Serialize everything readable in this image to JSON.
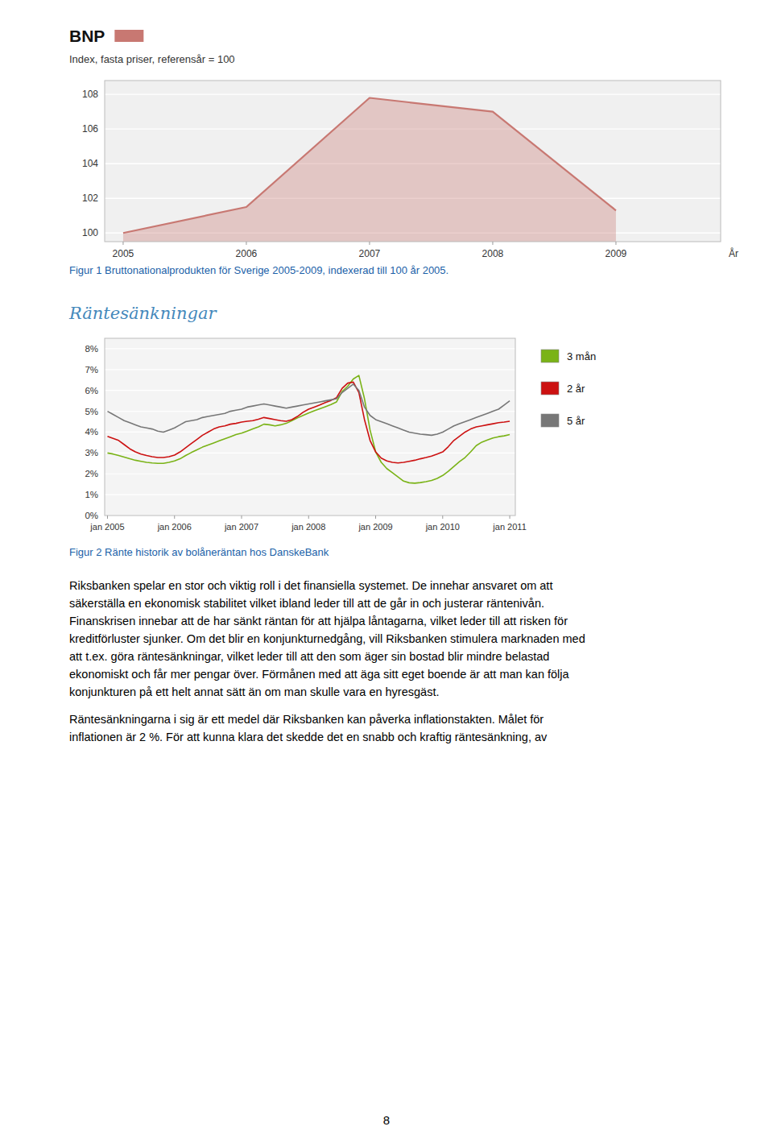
{
  "chart_data": [
    {
      "type": "area",
      "title": "BNP",
      "subtitle": "Index, fasta priser, referensår = 100",
      "xlabel": "År",
      "caption": "Figur 1 Bruttonationalprodukten för Sverige 2005-2009, indexerad till 100 år 2005.",
      "x": [
        2005,
        2006,
        2007,
        2008,
        2009
      ],
      "series": [
        {
          "color": "#c87872",
          "values": [
            100.0,
            101.5,
            107.8,
            107.0,
            101.3
          ]
        }
      ],
      "xlim": [
        2004.85,
        2009.85
      ],
      "xticks": [
        2005,
        2006,
        2007,
        2008,
        2009
      ],
      "ylim": [
        99.5,
        108.8
      ],
      "yticks": [
        100,
        102,
        104,
        106,
        108
      ],
      "grid": true
    },
    {
      "type": "line",
      "title": "Räntesänkningar",
      "caption": "Figur 2 Ränte historik av bolåneräntan hos DanskeBank",
      "categories": [
        "jan 2005",
        null,
        null,
        null,
        null,
        null,
        null,
        null,
        null,
        null,
        null,
        null,
        "jan 2006",
        null,
        null,
        null,
        null,
        null,
        null,
        null,
        null,
        null,
        null,
        null,
        "jan 2007",
        null,
        null,
        null,
        null,
        null,
        null,
        null,
        null,
        null,
        null,
        null,
        "jan 2008",
        null,
        null,
        null,
        null,
        null,
        null,
        null,
        null,
        null,
        null,
        null,
        "jan 2009",
        null,
        null,
        null,
        null,
        null,
        null,
        null,
        null,
        null,
        null,
        null,
        "jan 2010",
        null,
        null,
        null,
        null,
        null,
        null,
        null,
        null,
        null,
        null,
        null,
        "jan 2011"
      ],
      "series": [
        {
          "name": "3 mån",
          "color": "#7ab317",
          "values": [
            3.0,
            2.95,
            2.88,
            2.8,
            2.72,
            2.65,
            2.6,
            2.55,
            2.52,
            2.5,
            2.5,
            2.55,
            2.62,
            2.72,
            2.88,
            3.02,
            3.15,
            3.28,
            3.38,
            3.48,
            3.58,
            3.68,
            3.78,
            3.88,
            3.95,
            4.05,
            4.15,
            4.25,
            4.38,
            4.35,
            4.3,
            4.35,
            4.42,
            4.55,
            4.68,
            4.8,
            4.92,
            5.02,
            5.12,
            5.22,
            5.32,
            5.45,
            5.95,
            6.2,
            6.55,
            6.72,
            5.6,
            4.1,
            3.05,
            2.55,
            2.25,
            2.05,
            1.85,
            1.65,
            1.57,
            1.55,
            1.58,
            1.62,
            1.68,
            1.78,
            1.92,
            2.12,
            2.35,
            2.58,
            2.78,
            3.05,
            3.35,
            3.52,
            3.62,
            3.72,
            3.78,
            3.82,
            3.88
          ]
        },
        {
          "name": "2 år",
          "color": "#cc1111",
          "values": [
            3.8,
            3.7,
            3.6,
            3.4,
            3.2,
            3.05,
            2.95,
            2.88,
            2.82,
            2.78,
            2.78,
            2.82,
            2.9,
            3.05,
            3.25,
            3.45,
            3.65,
            3.85,
            4.0,
            4.15,
            4.25,
            4.3,
            4.38,
            4.42,
            4.48,
            4.52,
            4.55,
            4.62,
            4.7,
            4.65,
            4.6,
            4.55,
            4.52,
            4.6,
            4.75,
            4.95,
            5.1,
            5.2,
            5.3,
            5.42,
            5.52,
            5.65,
            6.1,
            6.35,
            6.4,
            5.9,
            4.6,
            3.6,
            3.05,
            2.75,
            2.62,
            2.55,
            2.52,
            2.55,
            2.6,
            2.65,
            2.72,
            2.78,
            2.85,
            2.95,
            3.05,
            3.3,
            3.6,
            3.8,
            4.0,
            4.15,
            4.25,
            4.3,
            4.35,
            4.4,
            4.45,
            4.48,
            4.52
          ]
        },
        {
          "name": "5 år",
          "color": "#777777",
          "values": [
            5.0,
            4.85,
            4.7,
            4.55,
            4.45,
            4.35,
            4.25,
            4.2,
            4.15,
            4.05,
            4.0,
            4.1,
            4.2,
            4.35,
            4.5,
            4.55,
            4.6,
            4.7,
            4.75,
            4.8,
            4.85,
            4.9,
            5.0,
            5.05,
            5.1,
            5.2,
            5.25,
            5.3,
            5.35,
            5.3,
            5.25,
            5.2,
            5.15,
            5.2,
            5.25,
            5.3,
            5.35,
            5.4,
            5.45,
            5.5,
            5.55,
            5.6,
            5.9,
            6.1,
            6.3,
            6.0,
            5.2,
            4.8,
            4.6,
            4.5,
            4.4,
            4.3,
            4.2,
            4.1,
            4.0,
            3.95,
            3.9,
            3.88,
            3.85,
            3.9,
            4.0,
            4.15,
            4.3,
            4.4,
            4.5,
            4.6,
            4.7,
            4.8,
            4.9,
            5.0,
            5.1,
            5.3,
            5.5
          ]
        }
      ],
      "ylim": [
        0,
        8.5
      ],
      "yticks": [
        {
          "value": 0,
          "label": "0%"
        },
        {
          "value": 1,
          "label": "1%"
        },
        {
          "value": 2,
          "label": "2%"
        },
        {
          "value": 3,
          "label": "3%"
        },
        {
          "value": 4,
          "label": "4%"
        },
        {
          "value": 5,
          "label": "5%"
        },
        {
          "value": 6,
          "label": "6%"
        },
        {
          "value": 7,
          "label": "7%"
        },
        {
          "value": 8,
          "label": "8%"
        }
      ],
      "grid": true,
      "legend": "right"
    }
  ],
  "body_text": [
    [
      "Riksbanken spelar en stor och viktig roll i det finansiella systemet. De innehar ansvaret om att",
      "säkerställa en ekonomisk stabilitet vilket ibland leder till att de går in och justerar räntenivån.",
      "Finanskrisen innebar att de har sänkt räntan för att hjälpa låntagarna, vilket leder till att risken för",
      "kreditförluster sjunker. Om det blir en konjunkturnedgång, vill Riksbanken stimulera marknaden med",
      "att t.ex. göra räntesänkningar, vilket leder till att den som äger sin bostad blir mindre belastad",
      "ekonomiskt och får mer pengar över. Förmånen med att äga sitt eget boende är att man kan följa",
      "konjunkturen på ett helt annat sätt än om man skulle vara en hyresgäst."
    ],
    [
      "Räntesänkningarna i sig är ett medel där Riksbanken kan påverka inflationstakten. Målet för",
      "inflationen är 2 %. För att kunna klara det skedde det en snabb och kraftig räntesänkning, av"
    ]
  ],
  "page_number": "8"
}
